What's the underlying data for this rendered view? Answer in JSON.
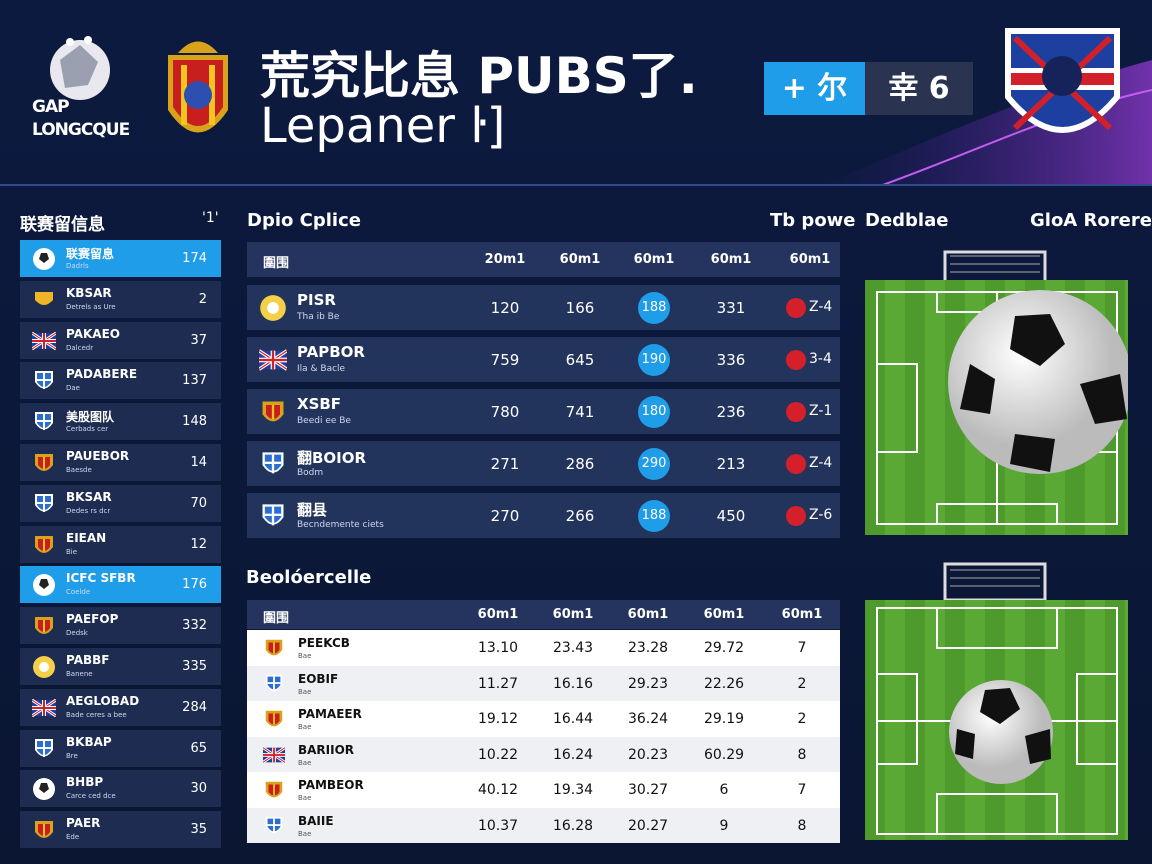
{
  "header": {
    "logo_line1": "GAP",
    "logo_line2": "LONGCQUE",
    "title_line1": "荒究比息 PUBS了.",
    "title_line2": "Lepaner ŀ]",
    "badge_left": "+ 尔",
    "badge_right": "幸 6"
  },
  "sidebar": {
    "title": "联赛留信息",
    "marker": "'1'",
    "rows": [
      [
        "联赛留息",
        "Dadrls",
        "174"
      ],
      [
        "KBSAR",
        "Detrels as Ure",
        "2"
      ],
      [
        "PAKAEO",
        "Dalcedr",
        "37"
      ],
      [
        "PADABERE",
        "Dae",
        "137"
      ],
      [
        "美股图队",
        "Cerbads cer",
        "148"
      ],
      [
        "PAUEBOR",
        "Baesde",
        "14"
      ],
      [
        "BKSAR",
        "Dedes rs dcr",
        "70"
      ],
      [
        "EIEAN",
        "Bie",
        "12"
      ],
      [
        "ICFC SFBR",
        "Coelde",
        "176"
      ],
      [
        "PAEFOP",
        "Dedsk",
        "332"
      ],
      [
        "PABBF",
        "Banene",
        "335"
      ],
      [
        "AEGLOBAD",
        "Bade ceres a bee",
        "284"
      ],
      [
        "BKBAP",
        "Bre",
        "65"
      ],
      [
        "BHBP",
        "Carce ced dce",
        "30"
      ],
      [
        "PAER",
        "Ede",
        "35"
      ]
    ]
  },
  "table1": {
    "title": "Dpio Cplice",
    "aside": "Tb powe",
    "header": [
      "圍围",
      "20m1",
      "60m1",
      "60m1",
      "60m1",
      "60m1"
    ],
    "rows": [
      [
        "PISR",
        "Tha ib Be",
        "120",
        "166",
        "188",
        "331",
        "Z-4"
      ],
      [
        "PAPBOR",
        "Ila & Bacle",
        "759",
        "645",
        "190",
        "336",
        "3-4"
      ],
      [
        "XSBF",
        "Beedi ee Be",
        "780",
        "741",
        "180",
        "236",
        "Z-1"
      ],
      [
        "翻BOIOR",
        "Bodm",
        "271",
        "286",
        "290",
        "213",
        "Z-4"
      ],
      [
        "翻县",
        "Becndemente ciets",
        "270",
        "266",
        "188",
        "450",
        "Z-6"
      ]
    ]
  },
  "panel": {
    "label_left": "Dedblae",
    "label_right": "GloA Rorere"
  },
  "table2": {
    "title": "Beolóercelle",
    "header": [
      "圍围",
      "60m1",
      "60m1",
      "60m1",
      "60m1",
      "60m1"
    ],
    "rows": [
      [
        "PEEKCB",
        "Bae",
        "13.10",
        "23.43",
        "23.28",
        "29.72",
        "7"
      ],
      [
        "EOBIF",
        "Bae",
        "11.27",
        "16.16",
        "29.23",
        "22.26",
        "2"
      ],
      [
        "PAMAEER",
        "Bae",
        "19.12",
        "16.44",
        "36.24",
        "29.19",
        "2"
      ],
      [
        "BARIIOR",
        "Bae",
        "10.22",
        "16.24",
        "20.23",
        "60.29",
        "8"
      ],
      [
        "PAMBEOR",
        "Bae",
        "40.12",
        "19.34",
        "30.27",
        "6",
        "7"
      ],
      [
        "BAIIE",
        "Bae",
        "10.37",
        "16.28",
        "20.27",
        "9",
        "8"
      ]
    ]
  }
}
